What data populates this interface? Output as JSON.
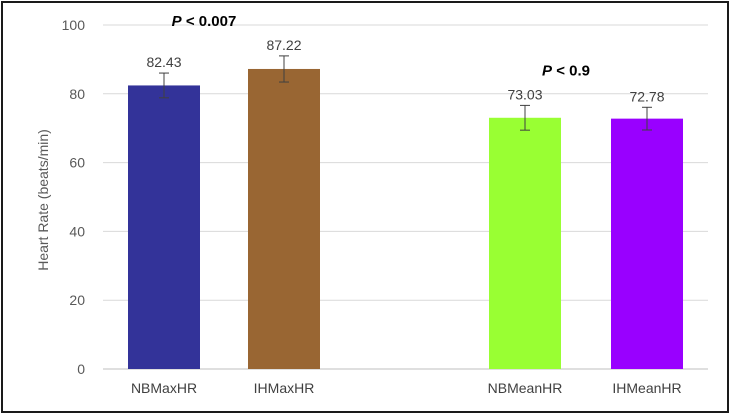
{
  "chart_data": {
    "type": "bar",
    "ylabel": "Heart Rate (beats/min)",
    "ylim": [
      0,
      100
    ],
    "yticks": [
      0,
      20,
      40,
      60,
      80,
      100
    ],
    "grid": true,
    "categories": [
      "NBMaxHR",
      "IHMaxHR",
      "NBMeanHR",
      "IHMeanHR"
    ],
    "values": [
      82.43,
      87.22,
      73.03,
      72.78
    ],
    "value_labels": [
      "82.43",
      "87.22",
      "73.03",
      "72.78"
    ],
    "error": [
      3.6,
      3.8,
      3.6,
      3.3
    ],
    "colors": [
      "#333399",
      "#996633",
      "#99ff33",
      "#9900ff"
    ],
    "annotations": [
      {
        "p": "P",
        "text": " < 0.007",
        "over": [
          0,
          1
        ]
      },
      {
        "p": "P",
        "text": " < 0.9",
        "over": [
          2,
          3
        ]
      }
    ]
  }
}
